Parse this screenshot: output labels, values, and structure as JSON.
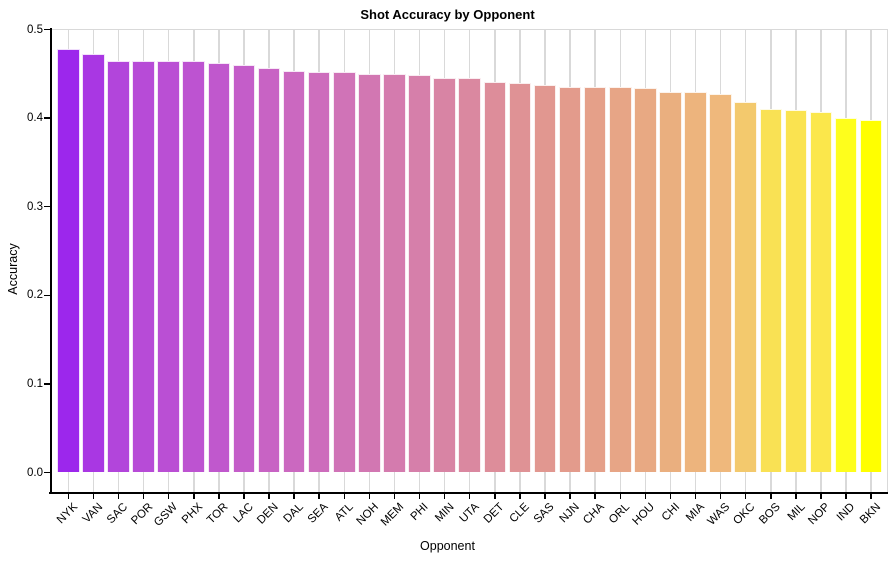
{
  "chart_data": {
    "type": "bar",
    "title": "Shot Accuracy by Opponent",
    "xlabel": "Opponent",
    "ylabel": "Accuracy",
    "ylim": [
      0,
      0.5
    ],
    "yticks": [
      "0.0",
      "0.1",
      "0.2",
      "0.3",
      "0.4",
      "0.5"
    ],
    "grid": "vertical gridline at each category; light gray top frame line at y=0.5",
    "legend": "none",
    "sort": "descending by value",
    "categories": [
      "NYK",
      "VAN",
      "SAC",
      "POR",
      "GSW",
      "PHX",
      "TOR",
      "LAC",
      "DEN",
      "DAL",
      "SEA",
      "ATL",
      "NOH",
      "MEM",
      "PHI",
      "MIN",
      "UTA",
      "DET",
      "CLE",
      "SAS",
      "NJN",
      "CHA",
      "ORL",
      "HOU",
      "CHI",
      "MIA",
      "WAS",
      "OKC",
      "BOS",
      "MIL",
      "NOP",
      "IND",
      "BKN"
    ],
    "values": [
      0.478,
      0.472,
      0.465,
      0.465,
      0.465,
      0.464,
      0.462,
      0.46,
      0.457,
      0.453,
      0.452,
      0.452,
      0.45,
      0.45,
      0.449,
      0.445,
      0.445,
      0.441,
      0.44,
      0.437,
      0.435,
      0.435,
      0.435,
      0.434,
      0.43,
      0.429,
      0.427,
      0.418,
      0.41,
      0.409,
      0.407,
      0.4,
      0.398
    ],
    "bar_colors": [
      "#9C27EC",
      "#A937E3",
      "#B245DB",
      "#B74BD7",
      "#BA4FD4",
      "#BD53D1",
      "#C058CD",
      "#C45DC9",
      "#C863C4",
      "#CB68C0",
      "#CD6CBC",
      "#D073B7",
      "#D277B2",
      "#D47BAE",
      "#D67FAA",
      "#D884A4",
      "#DA88A0",
      "#DD8D9A",
      "#DF9295",
      "#E19790",
      "#E39B8C",
      "#E5A089",
      "#E7A586",
      "#E8A983",
      "#EAAF7F",
      "#EDB47D",
      "#EFB87C",
      "#F3C96D",
      "#F9E154",
      "#FAE350",
      "#FBE74B",
      "#FEFE1C",
      "#FFFF00"
    ]
  },
  "colors": {
    "background": "#FFFFFF",
    "axis": "#000000",
    "gridline": "#D9D9D9",
    "text": "#000000",
    "bar_edge": "#FFFFFF"
  }
}
